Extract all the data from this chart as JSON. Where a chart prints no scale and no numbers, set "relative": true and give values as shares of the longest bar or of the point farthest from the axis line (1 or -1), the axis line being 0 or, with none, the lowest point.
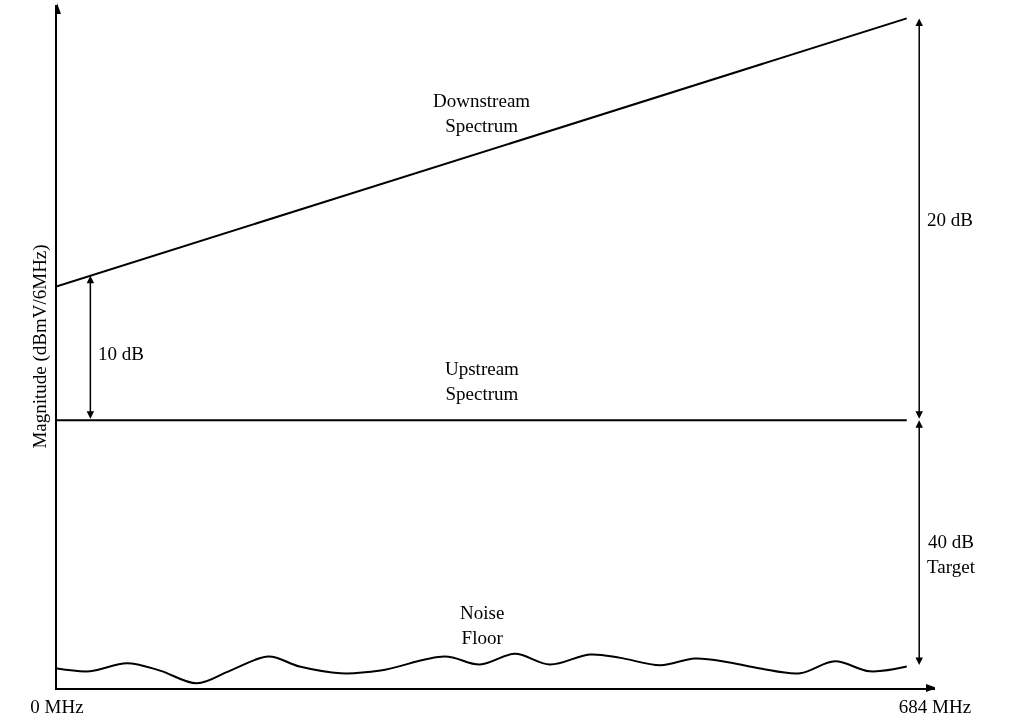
{
  "chart_data": {
    "type": "line",
    "relative": true,
    "xlabel": null,
    "ylabel": "Magnitude (dBmV/6MHz)",
    "xlim": [
      0,
      684
    ],
    "xticks": [
      {
        "value": 0,
        "label": "0 MHz"
      },
      {
        "value": 684,
        "label": "684 MHz"
      }
    ],
    "series": [
      {
        "name": "Downstream Spectrum",
        "color": "#000000",
        "x": [
          0,
          662
        ],
        "values": [
          0.6,
          1
        ]
      },
      {
        "name": "Upstream Spectrum",
        "color": "#000000",
        "x": [
          0,
          662
        ],
        "values": [
          0.4,
          0.4
        ]
      },
      {
        "name": "Noise Floor",
        "color": "#000000",
        "x": [
          0,
          25.7,
          54.5,
          80.2,
          109,
          135,
          164.8,
          189,
          221,
          252,
          302,
          329.5,
          356.8,
          384,
          415,
          439,
          470,
          497,
          524,
          548,
          579,
          606,
          633,
          662
        ],
        "values": [
          0.029,
          0.025,
          0.037,
          0.026,
          0.007,
          0.026,
          0.047,
          0.032,
          0.022,
          0.026,
          0.047,
          0.035,
          0.051,
          0.035,
          0.05,
          0.045,
          0.034,
          0.044,
          0.038,
          0.029,
          0.022,
          0.04,
          0.025,
          0.032
        ]
      }
    ],
    "annotations": [
      "10 dB",
      "20 dB",
      "40 dB\nTarget"
    ],
    "grid": false,
    "legend": false,
    "marker": "none",
    "line_style": "solid"
  }
}
